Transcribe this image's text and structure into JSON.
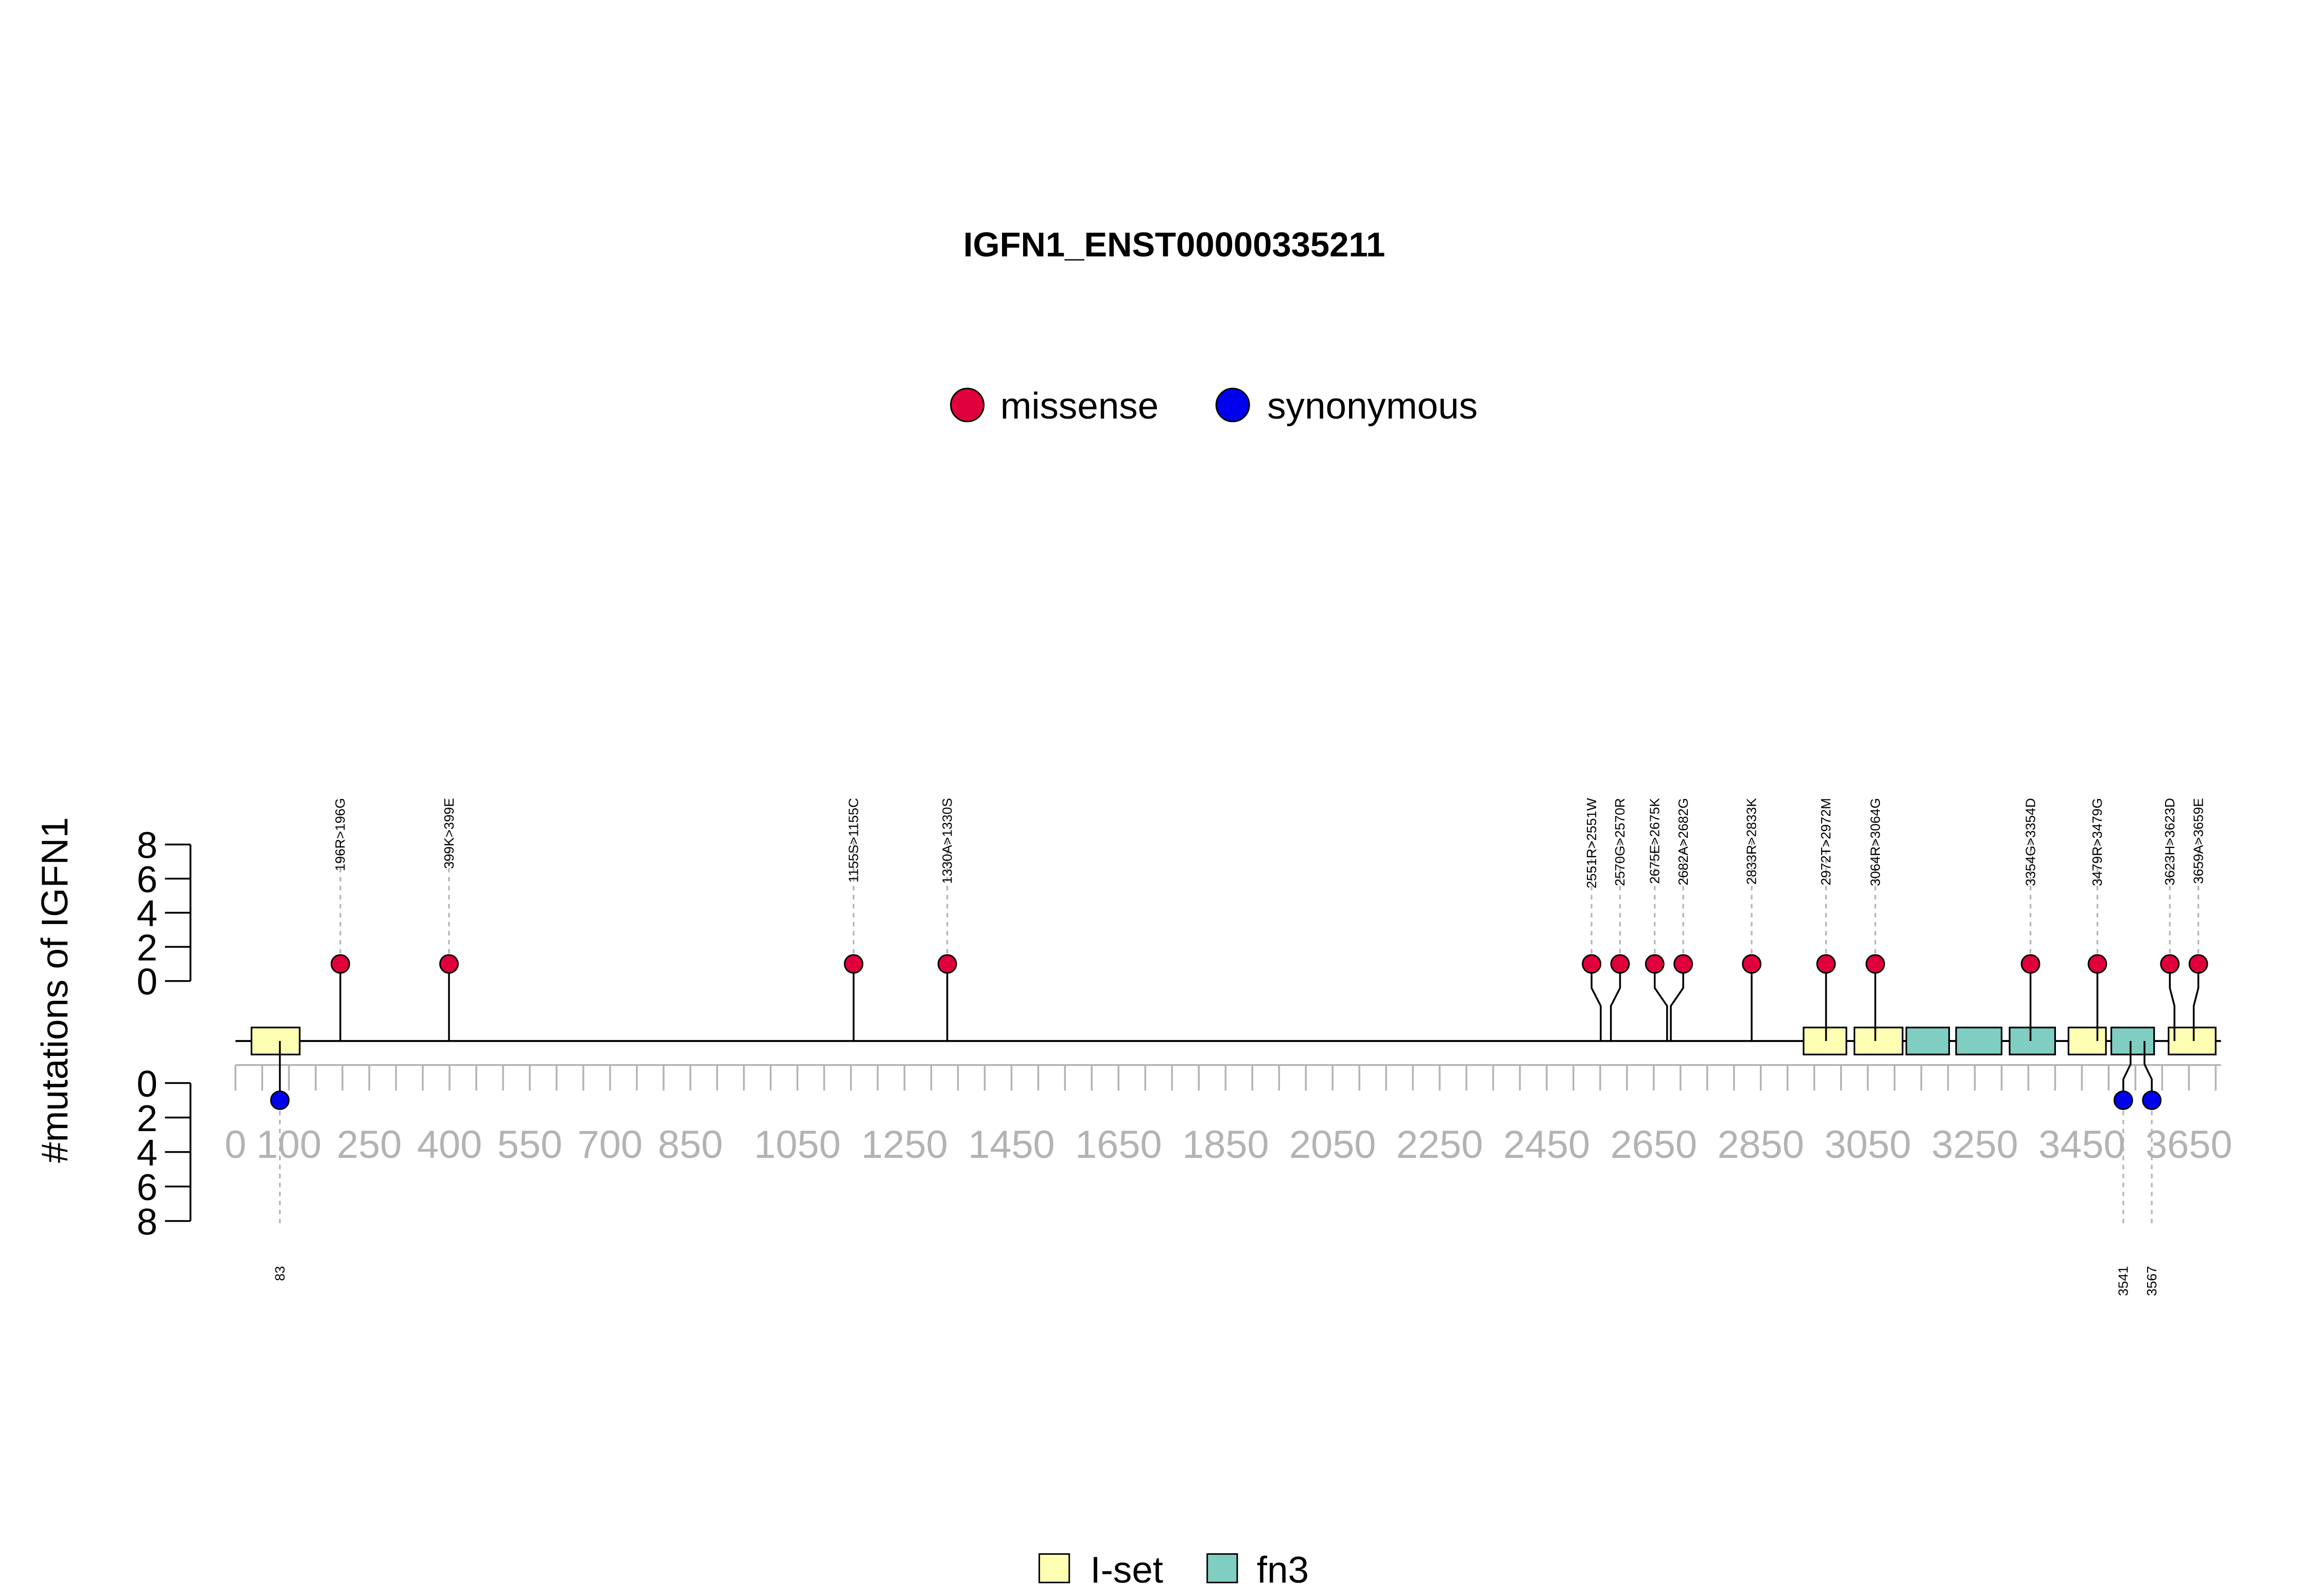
{
  "chart_data": {
    "type": "lollipop",
    "title": "IGFN1_ENST00000335211",
    "ylabel": "#mutations of IGFN1",
    "protein_length": 3710,
    "x_ticks": [
      0,
      100,
      250,
      400,
      550,
      700,
      850,
      1050,
      1250,
      1450,
      1650,
      1850,
      2050,
      2250,
      2450,
      2650,
      2850,
      3050,
      3250,
      3450,
      3650
    ],
    "y_ticks": [
      0,
      2,
      4,
      6,
      8
    ],
    "ylim": [
      0,
      8
    ],
    "legend": {
      "mutations": [
        {
          "label": "missense",
          "color": "#e0003c"
        },
        {
          "label": "synonymous",
          "color": "#0000ee"
        }
      ],
      "domains": [
        {
          "label": "I-set",
          "color": "#ffffb3"
        },
        {
          "label": "fn3",
          "color": "#80cdc1"
        }
      ]
    },
    "domains": [
      {
        "name": "I-set",
        "start": 30,
        "end": 120
      },
      {
        "name": "I-set",
        "start": 2930,
        "end": 3010
      },
      {
        "name": "I-set",
        "start": 3025,
        "end": 3115
      },
      {
        "name": "fn3",
        "start": 3122,
        "end": 3202
      },
      {
        "name": "fn3",
        "start": 3215,
        "end": 3300
      },
      {
        "name": "fn3",
        "start": 3315,
        "end": 3400
      },
      {
        "name": "I-set",
        "start": 3425,
        "end": 3495
      },
      {
        "name": "fn3",
        "start": 3505,
        "end": 3585
      },
      {
        "name": "I-set",
        "start": 3612,
        "end": 3700
      }
    ],
    "missense": [
      {
        "pos": 196,
        "count": 1,
        "label": "196R>196G"
      },
      {
        "pos": 399,
        "count": 1,
        "label": "399K>399E"
      },
      {
        "pos": 1155,
        "count": 1,
        "label": "1155S>1155C"
      },
      {
        "pos": 1330,
        "count": 1,
        "label": "1330A>1330S"
      },
      {
        "pos": 2551,
        "count": 1,
        "label": "2551R>2551W"
      },
      {
        "pos": 2570,
        "count": 1,
        "label": "2570G>2570R"
      },
      {
        "pos": 2675,
        "count": 1,
        "label": "2675E>2675K"
      },
      {
        "pos": 2682,
        "count": 1,
        "label": "2682A>2682G"
      },
      {
        "pos": 2833,
        "count": 1,
        "label": "2833R>2833K"
      },
      {
        "pos": 2972,
        "count": 1,
        "label": "2972T>2972M"
      },
      {
        "pos": 3064,
        "count": 1,
        "label": "3064R>3064G"
      },
      {
        "pos": 3354,
        "count": 1,
        "label": "3354G>3354D"
      },
      {
        "pos": 3479,
        "count": 1,
        "label": "3479R>3479G"
      },
      {
        "pos": 3623,
        "count": 1,
        "label": "3623H>3623D"
      },
      {
        "pos": 3659,
        "count": 1,
        "label": "3659A>3659E"
      }
    ],
    "synonymous": [
      {
        "pos": 83,
        "count": 1,
        "label": "83"
      },
      {
        "pos": 3541,
        "count": 1,
        "label": "3541"
      },
      {
        "pos": 3567,
        "count": 1,
        "label": "3567"
      }
    ]
  }
}
